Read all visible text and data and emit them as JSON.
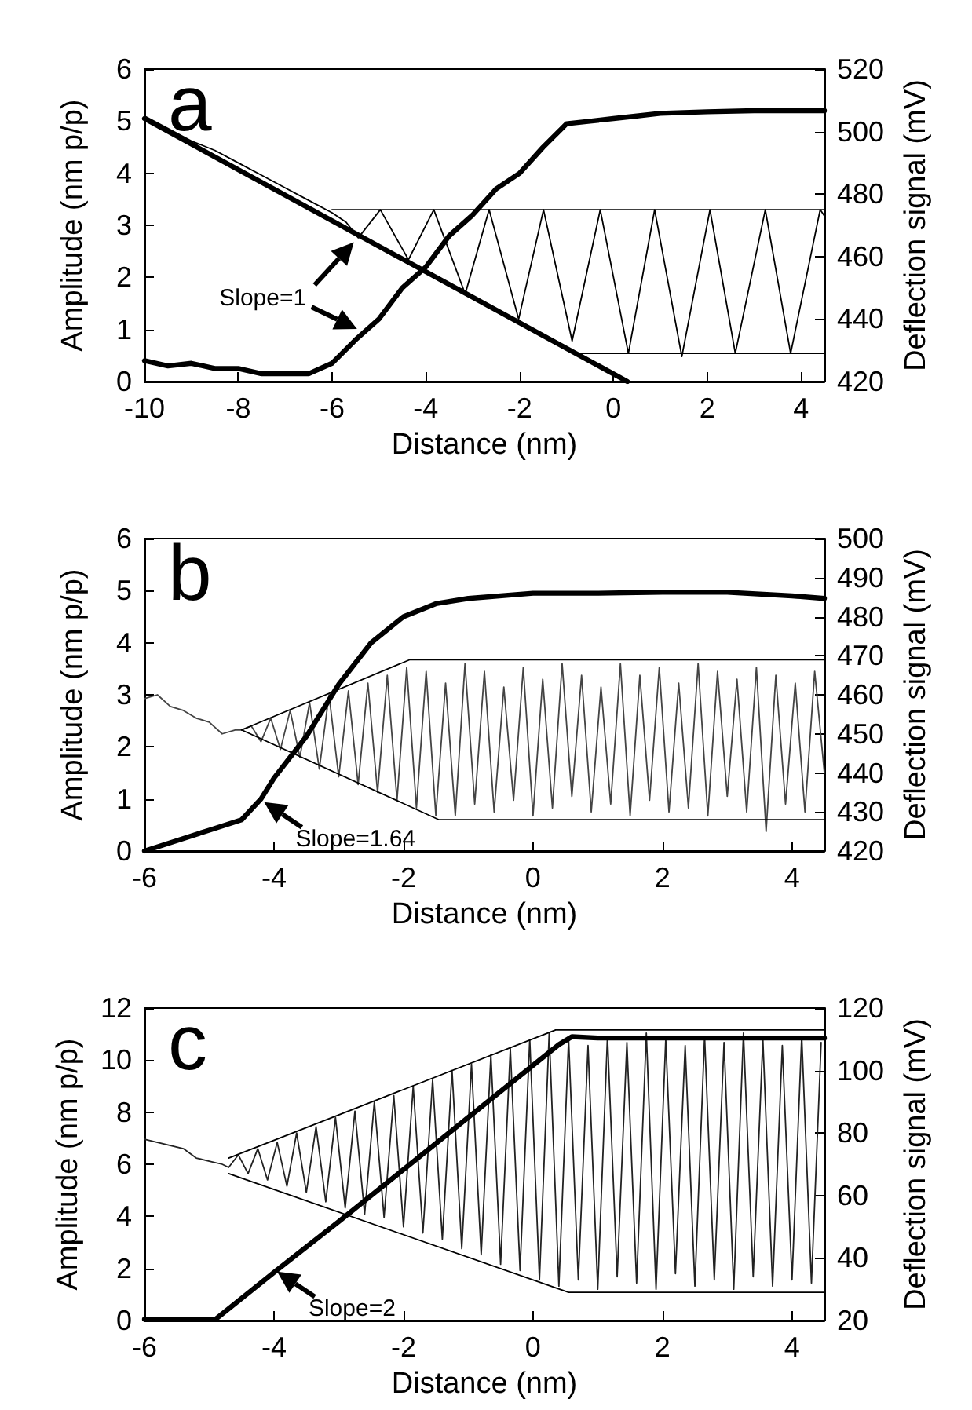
{
  "chart_data": [
    {
      "type": "line",
      "title": "a",
      "xlabel": "Distance (nm)",
      "ylabel": "Amplitude (nm p/p)",
      "y2label": "Deflection signal (mV)",
      "xlim": [
        -10,
        4.5
      ],
      "xticks": [
        -10,
        -8,
        -6,
        -4,
        -2,
        0,
        2,
        4
      ],
      "ylim": [
        0,
        6
      ],
      "yticks": [
        0,
        1,
        2,
        3,
        4,
        5,
        6
      ],
      "y2lim": [
        420,
        520
      ],
      "y2ticks": [
        420,
        440,
        460,
        480,
        500,
        520
      ],
      "annotations": [
        {
          "text": "Slope=1",
          "x": -5.4,
          "y": 0.95
        }
      ],
      "series": [
        {
          "color": "#000000",
          "x": [
            -10,
            -9.5,
            -9,
            -8.5,
            -8,
            -7.5,
            -7,
            -6.5,
            -6,
            -5.5,
            -5,
            -4.5,
            -4,
            -3.5,
            -3,
            -2.5,
            -2,
            -1.5,
            -1,
            -0.5,
            0,
            0.5,
            1,
            2,
            3,
            4.5
          ],
          "values": [
            0.4,
            0.3,
            0.35,
            0.25,
            0.25,
            0.15,
            0.15,
            0.15,
            0.35,
            0.8,
            1.2,
            1.8,
            2.2,
            2.8,
            3.2,
            3.7,
            4.0,
            4.5,
            4.95,
            5.0,
            5.05,
            5.1,
            5.15,
            5.18,
            5.2,
            5.2
          ]
        },
        {
          "color": "#000000",
          "x": [
            -10,
            0.3
          ],
          "values": [
            5.05,
            0
          ]
        },
        {
          "color": "#000000",
          "axis": "y2",
          "x": [
            -10,
            -9.5,
            -9,
            -8.5,
            -8,
            -7.5,
            -7,
            -6.5,
            -6,
            -5.7,
            -5.44,
            -4.97,
            -4.37,
            -3.83,
            -3.16,
            -2.65,
            -2.02,
            -1.49,
            -0.88,
            -0.28,
            0.32,
            0.88,
            1.46,
            2.06,
            2.6,
            3.24,
            3.78,
            4.41,
            4.5
          ],
          "values": [
            505,
            501,
            497,
            494,
            490,
            486,
            482,
            478,
            474,
            471,
            466,
            475,
            459,
            475,
            448,
            475,
            440,
            475,
            433,
            475,
            429,
            475,
            428,
            475,
            429,
            475,
            429,
            475,
            473
          ]
        },
        {
          "color": "#000000",
          "axis": "y2",
          "x": [
            -6,
            4.5
          ],
          "values": [
            475,
            475
          ]
        },
        {
          "color": "#000000",
          "axis": "y2",
          "x": [
            -0.7,
            4.5
          ],
          "values": [
            429,
            429
          ]
        }
      ]
    },
    {
      "type": "line",
      "title": "b",
      "xlabel": "Distance (nm)",
      "ylabel": "Amplitude (nm p/p)",
      "y2label": "Deflection signal (mV)",
      "xlim": [
        -6,
        4.5
      ],
      "xticks": [
        -6,
        -4,
        -2,
        0,
        2,
        4
      ],
      "ylim": [
        0,
        6
      ],
      "yticks": [
        0,
        1,
        2,
        3,
        4,
        5,
        6
      ],
      "y2lim": [
        420,
        500
      ],
      "y2ticks": [
        420,
        430,
        440,
        450,
        460,
        470,
        480,
        490,
        500
      ],
      "annotations": [
        {
          "text": "Slope=1.64",
          "x": -4.2,
          "y": 1.0
        }
      ],
      "series": [
        {
          "color": "#000000",
          "x": [
            -6,
            -5.5,
            -5,
            -4.5,
            -4.2,
            -4,
            -3.5,
            -3,
            -2.5,
            -2,
            -1.5,
            -1,
            0,
            1,
            2,
            3,
            4,
            4.5
          ],
          "values": [
            0,
            0.2,
            0.4,
            0.6,
            1.0,
            1.4,
            2.2,
            3.2,
            4.0,
            4.5,
            4.75,
            4.85,
            4.95,
            4.95,
            4.97,
            4.97,
            4.9,
            4.85
          ]
        },
        {
          "color": "#444444",
          "axis": "y2",
          "x": [
            -6,
            -5.8,
            -5.6,
            -5.4,
            -5.2,
            -5,
            -4.8,
            -4.6,
            -4.5,
            -4.35,
            -4.2,
            -4.05,
            -3.9,
            -3.75,
            -3.6,
            -3.45,
            -3.3,
            -3.15,
            -3.0,
            -2.85,
            -2.7,
            -2.55,
            -2.4,
            -2.25,
            -2.1,
            -1.95,
            -1.8,
            -1.65,
            -1.5,
            -1.35,
            -1.2,
            -1.05,
            -0.9,
            -0.75,
            -0.6,
            -0.45,
            -0.3,
            -0.15,
            0,
            0.15,
            0.3,
            0.45,
            0.6,
            0.75,
            0.9,
            1.05,
            1.2,
            1.35,
            1.5,
            1.65,
            1.8,
            1.95,
            2.1,
            2.25,
            2.4,
            2.55,
            2.7,
            2.85,
            3.0,
            3.15,
            3.3,
            3.45,
            3.6,
            3.75,
            3.9,
            4.05,
            4.2,
            4.35,
            4.5
          ],
          "values": [
            459,
            460,
            457,
            456,
            454,
            453,
            450,
            451,
            451,
            452,
            448,
            454,
            446,
            456,
            444,
            458,
            441,
            460,
            439,
            461,
            437,
            463,
            435,
            465,
            433,
            467,
            431,
            466,
            429,
            463,
            429,
            468,
            432,
            466,
            430,
            462,
            433,
            467,
            429,
            464,
            431,
            468,
            434,
            465,
            430,
            462,
            432,
            468,
            429,
            465,
            433,
            467,
            430,
            463,
            431,
            468,
            429,
            466,
            434,
            464,
            430,
            467,
            425,
            465,
            432,
            463,
            430,
            466,
            440
          ]
        },
        {
          "color": "#000000",
          "axis": "y2",
          "x": [
            -4.5,
            -1.9,
            4.5
          ],
          "values": [
            451,
            469,
            469
          ]
        },
        {
          "color": "#000000",
          "axis": "y2",
          "x": [
            -4.5,
            -1.45,
            4.5
          ],
          "values": [
            451,
            428,
            428
          ]
        }
      ]
    },
    {
      "type": "line",
      "title": "c",
      "xlabel": "Distance (nm)",
      "ylabel": "Amplitude (nm p/p)",
      "y2label": "Deflection signal (mV)",
      "xlim": [
        -6,
        4.5
      ],
      "xticks": [
        -6,
        -4,
        -2,
        0,
        2,
        4
      ],
      "ylim": [
        0,
        12
      ],
      "yticks": [
        0,
        2,
        4,
        6,
        8,
        10,
        12
      ],
      "y2lim": [
        20,
        120
      ],
      "y2ticks": [
        20,
        40,
        60,
        80,
        100,
        120
      ],
      "annotations": [
        {
          "text": "Slope=2",
          "x": -4.0,
          "y": 2.0
        }
      ],
      "series": [
        {
          "color": "#222222",
          "axis": "y2",
          "x": [
            -6,
            -5.8,
            -5.6,
            -5.4,
            -5.2,
            -5,
            -4.8,
            -4.7,
            -4.55,
            -4.4,
            -4.25,
            -4.1,
            -3.95,
            -3.8,
            -3.65,
            -3.5,
            -3.35,
            -3.2,
            -3.05,
            -2.9,
            -2.75,
            -2.6,
            -2.45,
            -2.3,
            -2.15,
            -2.0,
            -1.85,
            -1.7,
            -1.55,
            -1.4,
            -1.25,
            -1.1,
            -0.95,
            -0.8,
            -0.65,
            -0.5,
            -0.35,
            -0.2,
            -0.05,
            0.1,
            0.25,
            0.4,
            0.55,
            0.7,
            0.85,
            1.0,
            1.15,
            1.3,
            1.45,
            1.6,
            1.75,
            1.9,
            2.05,
            2.2,
            2.35,
            2.5,
            2.65,
            2.8,
            2.95,
            3.1,
            3.25,
            3.4,
            3.55,
            3.7,
            3.85,
            4.0,
            4.15,
            4.3,
            4.45
          ],
          "values": [
            78,
            77,
            76,
            75,
            72,
            71,
            70,
            69,
            73,
            67,
            75,
            65,
            77,
            63,
            80,
            61,
            82,
            58,
            85,
            56,
            87,
            54,
            90,
            53,
            92,
            50,
            95,
            48,
            97,
            46,
            100,
            43,
            102,
            41,
            105,
            38,
            107,
            36,
            110,
            33,
            112,
            31,
            110,
            33,
            108,
            30,
            111,
            34,
            109,
            32,
            112,
            30,
            110,
            35,
            108,
            31,
            111,
            33,
            109,
            30,
            112,
            34,
            110,
            31,
            108,
            33,
            111,
            32,
            109
          ]
        },
        {
          "color": "#000000",
          "axis": "y2",
          "x": [
            -4.7,
            0.35,
            4.5
          ],
          "values": [
            72,
            113,
            113
          ]
        },
        {
          "color": "#000000",
          "axis": "y2",
          "x": [
            -4.7,
            0.55,
            4.5
          ],
          "values": [
            67,
            29,
            29
          ]
        },
        {
          "color": "#000000",
          "x": [
            -6,
            -5.5,
            -4.9,
            -4,
            -3,
            -2,
            -1,
            0,
            0.4,
            0.6,
            1,
            2,
            3,
            4.5
          ],
          "values": [
            0.05,
            0.05,
            0.05,
            1.85,
            3.8,
            5.8,
            7.8,
            9.8,
            10.6,
            10.9,
            10.85,
            10.85,
            10.85,
            10.85
          ]
        }
      ]
    }
  ]
}
